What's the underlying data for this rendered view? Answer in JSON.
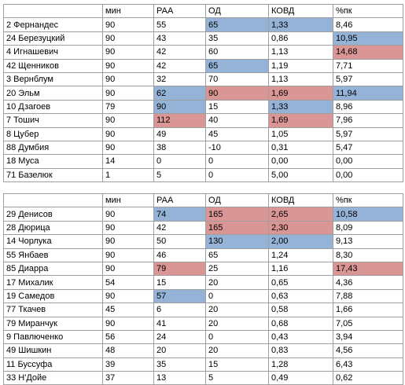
{
  "colors": {
    "blue": "#95b3d7",
    "red": "#da9694",
    "border": "#9e9e9e"
  },
  "tables": [
    {
      "headers": [
        "",
        "мин",
        "РАА",
        "ОД",
        "КОВД",
        "%пк"
      ],
      "rows": [
        {
          "cells": [
            "2 Фернандес",
            "90",
            "55",
            "65",
            "1,33",
            "8,46"
          ],
          "hl": [
            "",
            "",
            "",
            "blue",
            "blue",
            ""
          ]
        },
        {
          "cells": [
            "24 Березуцкий",
            "90",
            "43",
            "35",
            "0,86",
            "10,95"
          ],
          "hl": [
            "",
            "",
            "",
            "",
            "",
            "blue"
          ]
        },
        {
          "cells": [
            "4 Игнашевич",
            "90",
            "42",
            "60",
            "1,13",
            "14,68"
          ],
          "hl": [
            "",
            "",
            "",
            "",
            "",
            "red"
          ]
        },
        {
          "cells": [
            "42 Щенников",
            "90",
            "42",
            "65",
            "1,19",
            "7,71"
          ],
          "hl": [
            "",
            "",
            "",
            "blue",
            "",
            ""
          ]
        },
        {
          "cells": [
            "3 Вернблум",
            "90",
            "32",
            "70",
            "1,13",
            "5,97"
          ],
          "hl": [
            "",
            "",
            "",
            "",
            "",
            ""
          ]
        },
        {
          "cells": [
            "20 Эльм",
            "90",
            "62",
            "90",
            "1,69",
            "11,94"
          ],
          "hl": [
            "",
            "",
            "blue",
            "red",
            "red",
            "blue"
          ]
        },
        {
          "cells": [
            "10 Дзагоев",
            "79",
            "90",
            "15",
            "1,33",
            "8,96"
          ],
          "hl": [
            "",
            "",
            "blue",
            "",
            "blue",
            ""
          ]
        },
        {
          "cells": [
            "7 Тошич",
            "90",
            "112",
            "40",
            "1,69",
            "7,96"
          ],
          "hl": [
            "",
            "",
            "red",
            "",
            "red",
            ""
          ]
        },
        {
          "cells": [
            "8 Цубер",
            "90",
            "49",
            "45",
            "1,05",
            "5,97"
          ],
          "hl": [
            "",
            "",
            "",
            "",
            "",
            ""
          ]
        },
        {
          "cells": [
            "88 Думбия",
            "90",
            "38",
            "-10",
            "0,31",
            "5,47"
          ],
          "hl": [
            "",
            "",
            "",
            "",
            "",
            ""
          ]
        },
        {
          "cells": [
            "18 Муса",
            "14",
            "0",
            "0",
            "0,00",
            "0,00"
          ],
          "hl": [
            "",
            "",
            "",
            "",
            "",
            ""
          ]
        },
        {
          "cells": [
            "71 Базелюк",
            "1",
            "5",
            "0",
            "5,00",
            "0,00"
          ],
          "hl": [
            "",
            "",
            "",
            "",
            "",
            ""
          ]
        }
      ]
    },
    {
      "headers": [
        "",
        "мин",
        "РАА",
        "ОД",
        "КОВД",
        "%пк"
      ],
      "rows": [
        {
          "cells": [
            "29 Денисов",
            "90",
            "74",
            "165",
            "2,65",
            "10,58"
          ],
          "hl": [
            "",
            "",
            "blue",
            "red",
            "red",
            "blue"
          ]
        },
        {
          "cells": [
            "28 Дюрица",
            "90",
            "42",
            "165",
            "2,30",
            "8,09"
          ],
          "hl": [
            "",
            "",
            "",
            "red",
            "red",
            ""
          ]
        },
        {
          "cells": [
            "14 Чорлука",
            "90",
            "50",
            "130",
            "2,00",
            "9,13"
          ],
          "hl": [
            "",
            "",
            "",
            "blue",
            "blue",
            ""
          ]
        },
        {
          "cells": [
            "55 Янбаев",
            "90",
            "46",
            "65",
            "1,24",
            "8,30"
          ],
          "hl": [
            "",
            "",
            "",
            "",
            "",
            ""
          ]
        },
        {
          "cells": [
            "85 Диарра",
            "90",
            "79",
            "25",
            "1,16",
            "17,43"
          ],
          "hl": [
            "",
            "",
            "red",
            "",
            "",
            "red"
          ]
        },
        {
          "cells": [
            "17 Михалик",
            "54",
            "15",
            "20",
            "0,65",
            "4,36"
          ],
          "hl": [
            "",
            "",
            "",
            "",
            "",
            ""
          ]
        },
        {
          "cells": [
            "19 Самедов",
            "90",
            "57",
            "0",
            "0,63",
            "7,88"
          ],
          "hl": [
            "",
            "",
            "blue",
            "",
            "",
            ""
          ]
        },
        {
          "cells": [
            "77 Ткачев",
            "45",
            "6",
            "20",
            "0,58",
            "1,66"
          ],
          "hl": [
            "",
            "",
            "",
            "",
            "",
            ""
          ]
        },
        {
          "cells": [
            "79 Миранчук",
            "90",
            "41",
            "20",
            "0,68",
            "7,05"
          ],
          "hl": [
            "",
            "",
            "",
            "",
            "",
            ""
          ]
        },
        {
          "cells": [
            "9 Павлюченко",
            "56",
            "24",
            "0",
            "0,43",
            "3,94"
          ],
          "hl": [
            "",
            "",
            "",
            "",
            "",
            ""
          ]
        },
        {
          "cells": [
            "49 Шишкин",
            "48",
            "20",
            "20",
            "0,83",
            "4,56"
          ],
          "hl": [
            "",
            "",
            "",
            "",
            "",
            ""
          ]
        },
        {
          "cells": [
            "11 Буссуфа",
            "39",
            "35",
            "15",
            "1,28",
            "6,43"
          ],
          "hl": [
            "",
            "",
            "",
            "",
            "",
            ""
          ]
        },
        {
          "cells": [
            "33 Н'Дойе",
            "37",
            "13",
            "5",
            "0,49",
            "0,62"
          ],
          "hl": [
            "",
            "",
            "",
            "",
            "",
            ""
          ]
        }
      ]
    }
  ]
}
